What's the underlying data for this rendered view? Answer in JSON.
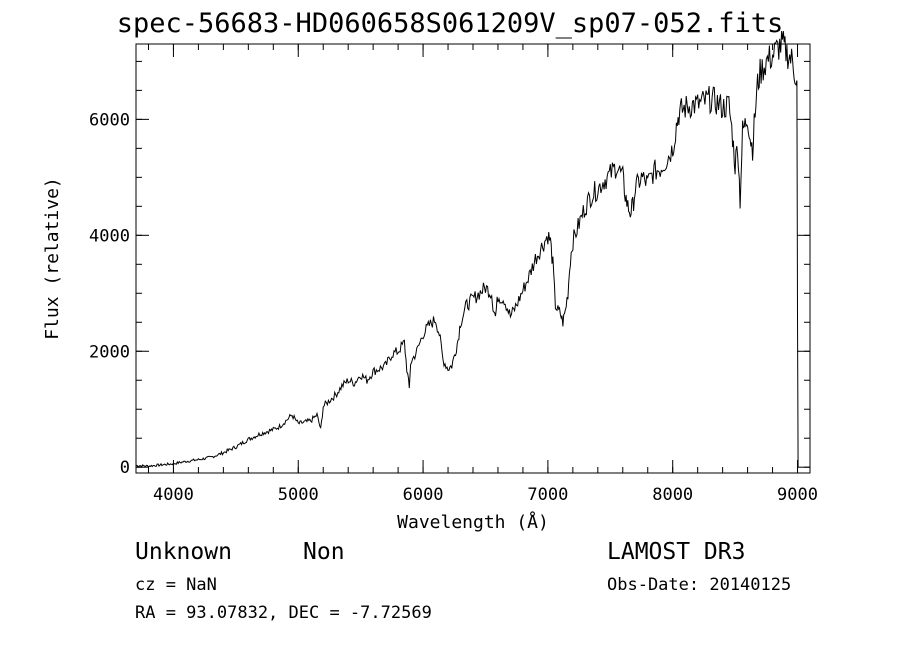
{
  "title": "spec-56683-HD060658S061209V_sp07-052.fits",
  "info": {
    "object_class": "Unknown",
    "subclass": "Non",
    "cz": "cz = NaN",
    "radec": "RA =  93.07832, DEC =  -7.72569",
    "survey": "LAMOST DR3",
    "obs_date": "Obs-Date: 20140125"
  },
  "chart_data": {
    "type": "line",
    "title": "spec-56683-HD060658S061209V_sp07-052.fits",
    "xlabel": "Wavelength (Å)",
    "ylabel": "Flux (relative)",
    "xlim": [
      3700,
      9100
    ],
    "ylim": [
      -100,
      7300
    ],
    "xticks": [
      4000,
      5000,
      6000,
      7000,
      8000,
      9000
    ],
    "yticks": [
      0,
      2000,
      4000,
      6000
    ],
    "x_minor_step": 200,
    "y_minor_step": 500,
    "grid": false,
    "series": [
      {
        "x": [
          3700,
          3800,
          3900,
          4000,
          4100,
          4200,
          4300,
          4400,
          4500,
          4600,
          4700,
          4800,
          4850,
          4900,
          4950,
          5000,
          5100,
          5150,
          5180,
          5200,
          5250,
          5300,
          5350,
          5400,
          5450,
          5500,
          5550,
          5600,
          5650,
          5700,
          5750,
          5800,
          5850,
          5870,
          5890,
          5900,
          5950,
          6000,
          6050,
          6100,
          6130,
          6160,
          6200,
          6230,
          6260,
          6280,
          6300,
          6350,
          6400,
          6450,
          6500,
          6550,
          6560,
          6580,
          6600,
          6650,
          6700,
          6750,
          6800,
          6850,
          6900,
          6950,
          7000,
          7020,
          7040,
          7060,
          7080,
          7100,
          7120,
          7140,
          7160,
          7180,
          7200,
          7250,
          7300,
          7350,
          7400,
          7450,
          7500,
          7550,
          7600,
          7620,
          7640,
          7660,
          7680,
          7700,
          7750,
          7800,
          7850,
          7900,
          7950,
          8000,
          8030,
          8050,
          8070,
          8100,
          8150,
          8200,
          8250,
          8300,
          8350,
          8400,
          8450,
          8480,
          8500,
          8520,
          8540,
          8560,
          8580,
          8600,
          8620,
          8640,
          8660,
          8680,
          8700,
          8750,
          8800,
          8850,
          8880,
          8900,
          8930,
          8960,
          8980,
          8995,
          9000,
          9005
        ],
        "y": [
          30,
          20,
          40,
          60,
          100,
          130,
          170,
          250,
          350,
          480,
          580,
          650,
          700,
          800,
          900,
          750,
          800,
          900,
          650,
          1050,
          1150,
          1250,
          1400,
          1500,
          1450,
          1600,
          1500,
          1650,
          1700,
          1750,
          1950,
          2000,
          2150,
          1700,
          1350,
          1800,
          2000,
          2300,
          2450,
          2550,
          2300,
          1850,
          1700,
          1750,
          2000,
          2200,
          2500,
          2800,
          2900,
          3000,
          3100,
          3000,
          2800,
          2600,
          2950,
          2900,
          2600,
          2800,
          3050,
          3300,
          3600,
          3800,
          4000,
          3900,
          3500,
          2800,
          2700,
          2650,
          2500,
          2700,
          3000,
          3600,
          3900,
          4200,
          4500,
          4700,
          4800,
          4950,
          5050,
          5200,
          5000,
          4700,
          4500,
          4400,
          4500,
          4800,
          5000,
          4900,
          5100,
          5150,
          5300,
          5500,
          5900,
          6100,
          6150,
          6200,
          6250,
          6250,
          6300,
          6350,
          6300,
          6200,
          6250,
          5700,
          5200,
          5600,
          4600,
          5800,
          5900,
          6050,
          5700,
          5500,
          6100,
          6600,
          6800,
          7000,
          7100,
          7250,
          7300,
          7200,
          7100,
          7000,
          6800,
          6600,
          2600,
          0
        ]
      }
    ]
  }
}
